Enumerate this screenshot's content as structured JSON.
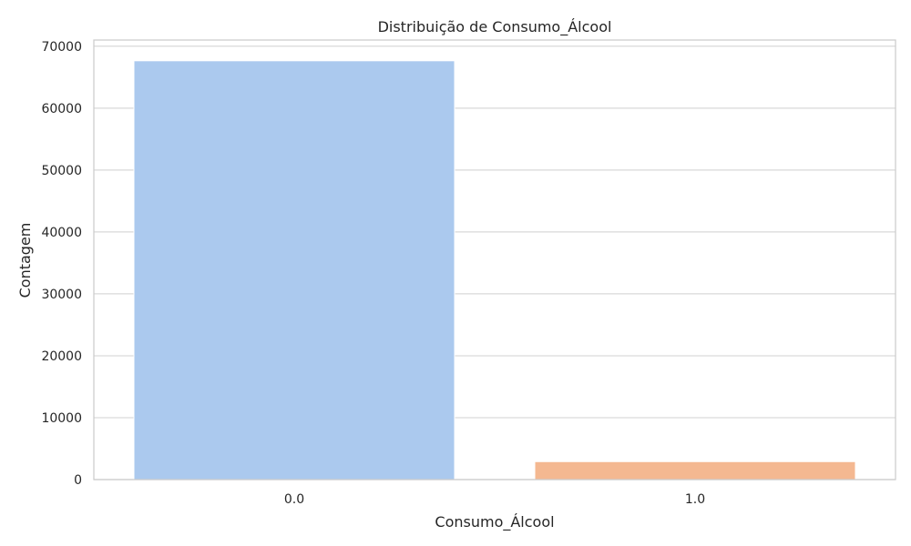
{
  "chart_data": {
    "type": "bar",
    "title": "Distribuição de Consumo_Álcool",
    "xlabel": "Consumo_Álcool",
    "ylabel": "Contagem",
    "categories": [
      "0.0",
      "1.0"
    ],
    "values": [
      67650,
      2900
    ],
    "ylim": [
      0,
      71000
    ],
    "yticks": [
      0,
      10000,
      20000,
      30000,
      40000,
      50000,
      60000,
      70000
    ],
    "colors": [
      "#abc9ee",
      "#f4b891"
    ],
    "grid": "horizontal",
    "legend": "none"
  }
}
